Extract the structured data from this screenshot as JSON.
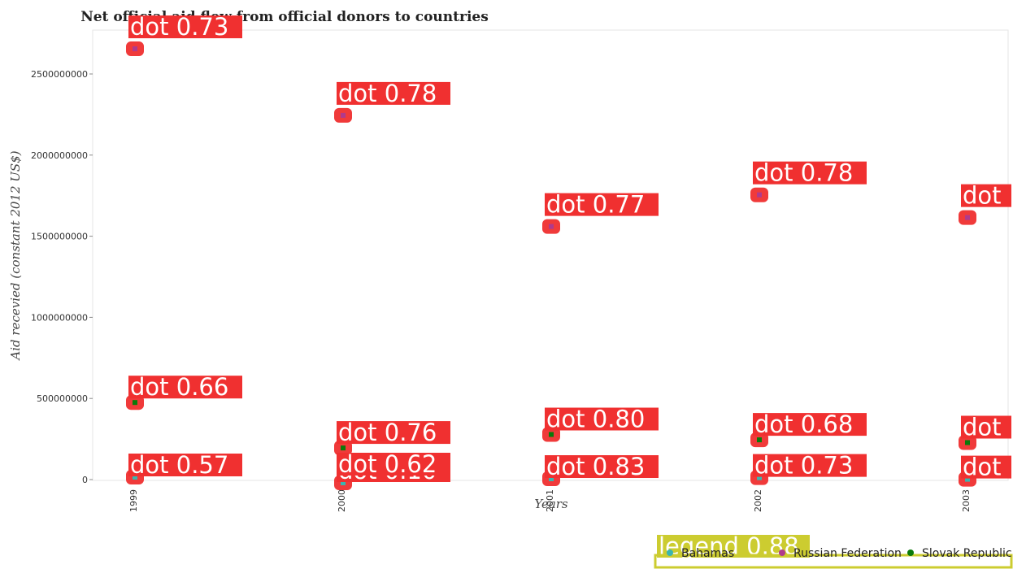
{
  "chart_data": {
    "type": "scatter",
    "title": "Net official aid flow from official donors to countries",
    "xlabel": "Years",
    "ylabel": "Aid recevied (constant 2012 US$)",
    "categories": [
      "1999",
      "2000",
      "2001",
      "2002",
      "2003"
    ],
    "ylim": [
      0,
      2800000000
    ],
    "yticks": [
      0,
      500000000,
      1000000000,
      1500000000,
      2000000000,
      2500000000
    ],
    "ytick_labels": [
      "0",
      "500000000",
      "1000000000",
      "1500000000",
      "2000000000",
      "2500000000"
    ],
    "grid": false,
    "legend_position": "bottom-right",
    "series": [
      {
        "name": "Bahamas",
        "color": "#3ab5b0",
        "values": [
          15000000,
          -20000000,
          5000000,
          12000000,
          2000000
        ],
        "labels": [
          "dot 0.57",
          "dot 0.10",
          "dot 0.83",
          "dot 0.73",
          "dot"
        ]
      },
      {
        "name": "Russian Federation",
        "color": "#b03a8c",
        "values": [
          2655000000,
          2245000000,
          1560000000,
          1755000000,
          1615000000
        ],
        "labels": [
          "dot 0.73",
          "dot 0.78",
          "dot 0.77",
          "dot 0.78",
          "dot"
        ]
      },
      {
        "name": "Slovak Republic",
        "color": "#0a7a0a",
        "values": [
          475000000,
          195000000,
          278000000,
          245000000,
          228000000
        ],
        "labels": [
          "dot 0.66",
          "dot 0.76",
          "dot 0.80",
          "dot 0.68",
          "dot"
        ]
      }
    ],
    "extra_labels": [
      "dot 0.62"
    ],
    "legend_tag": "legend 0.88",
    "marker_box_color": "#f03a3a",
    "label_box_color": "#f03030",
    "legend_tag_color": "#cccc30"
  }
}
